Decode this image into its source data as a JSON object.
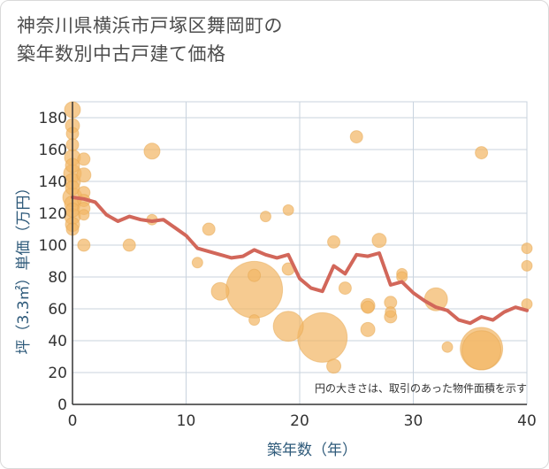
{
  "title_line1": "神奈川県横浜市戸塚区舞岡町の",
  "title_line2": "築年数別中古戸建て価格",
  "chart_data": {
    "type": "scatter",
    "xlabel": "築年数（年）",
    "ylabel": "坪（3.3㎡）単価（万円）",
    "xlim": [
      0,
      40
    ],
    "ylim": [
      0,
      190
    ],
    "xticks": [
      0,
      10,
      20,
      30,
      40
    ],
    "yticks": [
      0,
      20,
      40,
      60,
      80,
      100,
      120,
      140,
      160,
      180
    ],
    "grid": true,
    "note": "円の大きさは、取引のあった物件面積を示す",
    "colors": {
      "bubble": "#f2b766",
      "line": "#d2675a",
      "grid": "#c8d3de",
      "axis": "#333333"
    },
    "points": [
      {
        "x": 0,
        "y": 185,
        "s": 9
      },
      {
        "x": 0,
        "y": 175,
        "s": 8
      },
      {
        "x": 0,
        "y": 170,
        "s": 7
      },
      {
        "x": 0,
        "y": 163,
        "s": 7
      },
      {
        "x": 0,
        "y": 155,
        "s": 9
      },
      {
        "x": 0,
        "y": 150,
        "s": 8
      },
      {
        "x": 0,
        "y": 145,
        "s": 10
      },
      {
        "x": 0,
        "y": 140,
        "s": 9
      },
      {
        "x": 0,
        "y": 136,
        "s": 8
      },
      {
        "x": 0,
        "y": 130,
        "s": 11
      },
      {
        "x": 0,
        "y": 126,
        "s": 9
      },
      {
        "x": 0,
        "y": 122,
        "s": 8
      },
      {
        "x": 0,
        "y": 118,
        "s": 9
      },
      {
        "x": 0,
        "y": 113,
        "s": 8
      },
      {
        "x": 0,
        "y": 110,
        "s": 7
      },
      {
        "x": 1,
        "y": 154,
        "s": 7
      },
      {
        "x": 1,
        "y": 144,
        "s": 8
      },
      {
        "x": 1,
        "y": 133,
        "s": 7
      },
      {
        "x": 1,
        "y": 128,
        "s": 7
      },
      {
        "x": 1,
        "y": 123,
        "s": 7
      },
      {
        "x": 1,
        "y": 119,
        "s": 6
      },
      {
        "x": 1,
        "y": 100,
        "s": 7
      },
      {
        "x": 5,
        "y": 100,
        "s": 7
      },
      {
        "x": 7,
        "y": 159,
        "s": 9
      },
      {
        "x": 7,
        "y": 116,
        "s": 6
      },
      {
        "x": 11,
        "y": 89,
        "s": 6
      },
      {
        "x": 12,
        "y": 110,
        "s": 7
      },
      {
        "x": 13,
        "y": 71,
        "s": 10
      },
      {
        "x": 16,
        "y": 72,
        "s": 32
      },
      {
        "x": 16,
        "y": 81,
        "s": 7
      },
      {
        "x": 16,
        "y": 53,
        "s": 6
      },
      {
        "x": 17,
        "y": 118,
        "s": 6
      },
      {
        "x": 19,
        "y": 122,
        "s": 6
      },
      {
        "x": 19,
        "y": 85,
        "s": 7
      },
      {
        "x": 19,
        "y": 49,
        "s": 17
      },
      {
        "x": 22,
        "y": 42,
        "s": 28
      },
      {
        "x": 23,
        "y": 102,
        "s": 7
      },
      {
        "x": 23,
        "y": 24,
        "s": 8
      },
      {
        "x": 24,
        "y": 73,
        "s": 7
      },
      {
        "x": 25,
        "y": 168,
        "s": 7
      },
      {
        "x": 26,
        "y": 62,
        "s": 8
      },
      {
        "x": 26,
        "y": 61,
        "s": 7
      },
      {
        "x": 26,
        "y": 47,
        "s": 8
      },
      {
        "x": 27,
        "y": 103,
        "s": 8
      },
      {
        "x": 28,
        "y": 64,
        "s": 7
      },
      {
        "x": 28,
        "y": 58,
        "s": 6
      },
      {
        "x": 28,
        "y": 55,
        "s": 7
      },
      {
        "x": 29,
        "y": 82,
        "s": 6
      },
      {
        "x": 29,
        "y": 80,
        "s": 6
      },
      {
        "x": 32,
        "y": 66,
        "s": 13
      },
      {
        "x": 33,
        "y": 36,
        "s": 6
      },
      {
        "x": 36,
        "y": 158,
        "s": 7
      },
      {
        "x": 36,
        "y": 35,
        "s": 24
      },
      {
        "x": 36,
        "y": 34,
        "s": 22
      },
      {
        "x": 40,
        "y": 98,
        "s": 6
      },
      {
        "x": 40,
        "y": 87,
        "s": 6
      },
      {
        "x": 40,
        "y": 63,
        "s": 6
      }
    ],
    "trend": [
      {
        "x": 0,
        "y": 130
      },
      {
        "x": 1,
        "y": 129
      },
      {
        "x": 2,
        "y": 127
      },
      {
        "x": 3,
        "y": 119
      },
      {
        "x": 4,
        "y": 115
      },
      {
        "x": 5,
        "y": 118
      },
      {
        "x": 6,
        "y": 116
      },
      {
        "x": 7,
        "y": 115
      },
      {
        "x": 8,
        "y": 116
      },
      {
        "x": 9,
        "y": 111
      },
      {
        "x": 10,
        "y": 106
      },
      {
        "x": 11,
        "y": 98
      },
      {
        "x": 12,
        "y": 96
      },
      {
        "x": 13,
        "y": 94
      },
      {
        "x": 14,
        "y": 92
      },
      {
        "x": 15,
        "y": 93
      },
      {
        "x": 16,
        "y": 97
      },
      {
        "x": 17,
        "y": 94
      },
      {
        "x": 18,
        "y": 92
      },
      {
        "x": 19,
        "y": 94
      },
      {
        "x": 20,
        "y": 79
      },
      {
        "x": 21,
        "y": 73
      },
      {
        "x": 22,
        "y": 71
      },
      {
        "x": 23,
        "y": 87
      },
      {
        "x": 24,
        "y": 82
      },
      {
        "x": 25,
        "y": 94
      },
      {
        "x": 26,
        "y": 93
      },
      {
        "x": 27,
        "y": 95
      },
      {
        "x": 28,
        "y": 75
      },
      {
        "x": 29,
        "y": 77
      },
      {
        "x": 30,
        "y": 70
      },
      {
        "x": 31,
        "y": 65
      },
      {
        "x": 32,
        "y": 61
      },
      {
        "x": 33,
        "y": 59
      },
      {
        "x": 34,
        "y": 53
      },
      {
        "x": 35,
        "y": 51
      },
      {
        "x": 36,
        "y": 55
      },
      {
        "x": 37,
        "y": 53
      },
      {
        "x": 38,
        "y": 58
      },
      {
        "x": 39,
        "y": 61
      },
      {
        "x": 40,
        "y": 59
      }
    ]
  }
}
